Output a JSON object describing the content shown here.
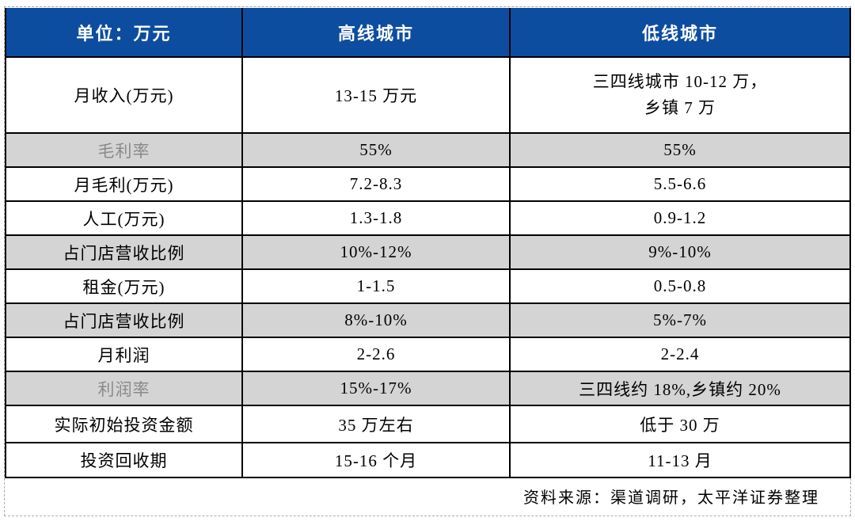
{
  "table": {
    "unit_header": "单位：万元",
    "columns": [
      {
        "label": "高线城市"
      },
      {
        "label": "低线城市"
      }
    ],
    "rows": [
      {
        "label": "月收入(万元)",
        "high": "13-15 万元",
        "low_lines": [
          "三四线城市 10-12 万，",
          "乡镇 7 万"
        ],
        "shaded": false,
        "label_gray": false
      },
      {
        "label": "毛利率",
        "high": "55%",
        "low": "55%",
        "shaded": true,
        "label_gray": true
      },
      {
        "label": "月毛利(万元)",
        "high": "7.2-8.3",
        "low": "5.5-6.6",
        "shaded": false,
        "label_gray": false
      },
      {
        "label": "人工(万元)",
        "high": "1.3-1.8",
        "low": "0.9-1.2",
        "shaded": false,
        "label_gray": false
      },
      {
        "label": "占门店营收比例",
        "high": "10%-12%",
        "low": "9%-10%",
        "shaded": true,
        "label_gray": false
      },
      {
        "label": "租金(万元)",
        "high": "1-1.5",
        "low": "0.5-0.8",
        "shaded": false,
        "label_gray": false
      },
      {
        "label": "占门店营收比例",
        "high": "8%-10%",
        "low": "5%-7%",
        "shaded": true,
        "label_gray": false
      },
      {
        "label": "月利润",
        "high": "2-2.6",
        "low": "2-2.4",
        "shaded": false,
        "label_gray": false
      },
      {
        "label": "利润率",
        "high": "15%-17%",
        "low": "三四线约 18%,乡镇约 20%",
        "shaded": true,
        "label_gray": true
      },
      {
        "label": "实际初始投资金额",
        "high": "35 万左右",
        "low": "低于 30 万",
        "shaded": false,
        "label_gray": false
      },
      {
        "label": "投资回收期",
        "high": "15-16 个月",
        "low": "11-13 月",
        "shaded": false,
        "label_gray": false
      }
    ]
  },
  "footer": {
    "source": "资料来源：渠道调研，太平洋证券整理"
  },
  "colors": {
    "header_bg": "#0d4da0",
    "header_text": "#ffffff",
    "shade_bg": "#d4d4d4",
    "gray_label_text": "#8a8a8a",
    "border": "#000000",
    "placeholder_dash": "#ababab",
    "background": "#ffffff"
  }
}
